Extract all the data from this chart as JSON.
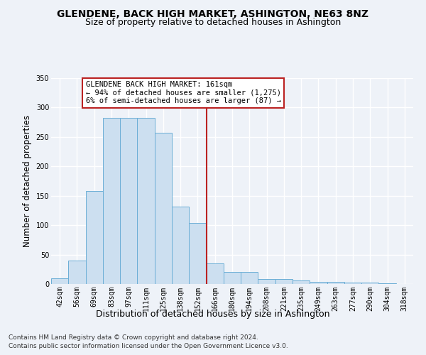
{
  "title": "GLENDENE, BACK HIGH MARKET, ASHINGTON, NE63 8NZ",
  "subtitle": "Size of property relative to detached houses in Ashington",
  "xlabel": "Distribution of detached houses by size in Ashington",
  "ylabel": "Number of detached properties",
  "categories": [
    "42sqm",
    "56sqm",
    "69sqm",
    "83sqm",
    "97sqm",
    "111sqm",
    "125sqm",
    "138sqm",
    "152sqm",
    "166sqm",
    "180sqm",
    "194sqm",
    "208sqm",
    "221sqm",
    "235sqm",
    "249sqm",
    "263sqm",
    "277sqm",
    "290sqm",
    "304sqm",
    "318sqm"
  ],
  "values": [
    10,
    40,
    158,
    283,
    283,
    283,
    257,
    132,
    104,
    35,
    20,
    21,
    9,
    9,
    6,
    4,
    4,
    3,
    2,
    1,
    0
  ],
  "bar_color": "#ccdff0",
  "bar_edge_color": "#6baed6",
  "vline_color": "#bb2222",
  "annotation_line1": "GLENDENE BACK HIGH MARKET: 161sqm",
  "annotation_line2": "← 94% of detached houses are smaller (1,275)",
  "annotation_line3": "6% of semi-detached houses are larger (87) →",
  "ylim": [
    0,
    350
  ],
  "yticks": [
    0,
    50,
    100,
    150,
    200,
    250,
    300,
    350
  ],
  "footer1": "Contains HM Land Registry data © Crown copyright and database right 2024.",
  "footer2": "Contains public sector information licensed under the Open Government Licence v3.0.",
  "bg_color": "#eef2f8",
  "plot_bg_color": "#eef2f8",
  "grid_color": "#ffffff",
  "title_fontsize": 10,
  "subtitle_fontsize": 9,
  "axis_label_fontsize": 8.5,
  "tick_fontsize": 7,
  "footer_fontsize": 6.5,
  "annotation_fontsize": 7.5
}
